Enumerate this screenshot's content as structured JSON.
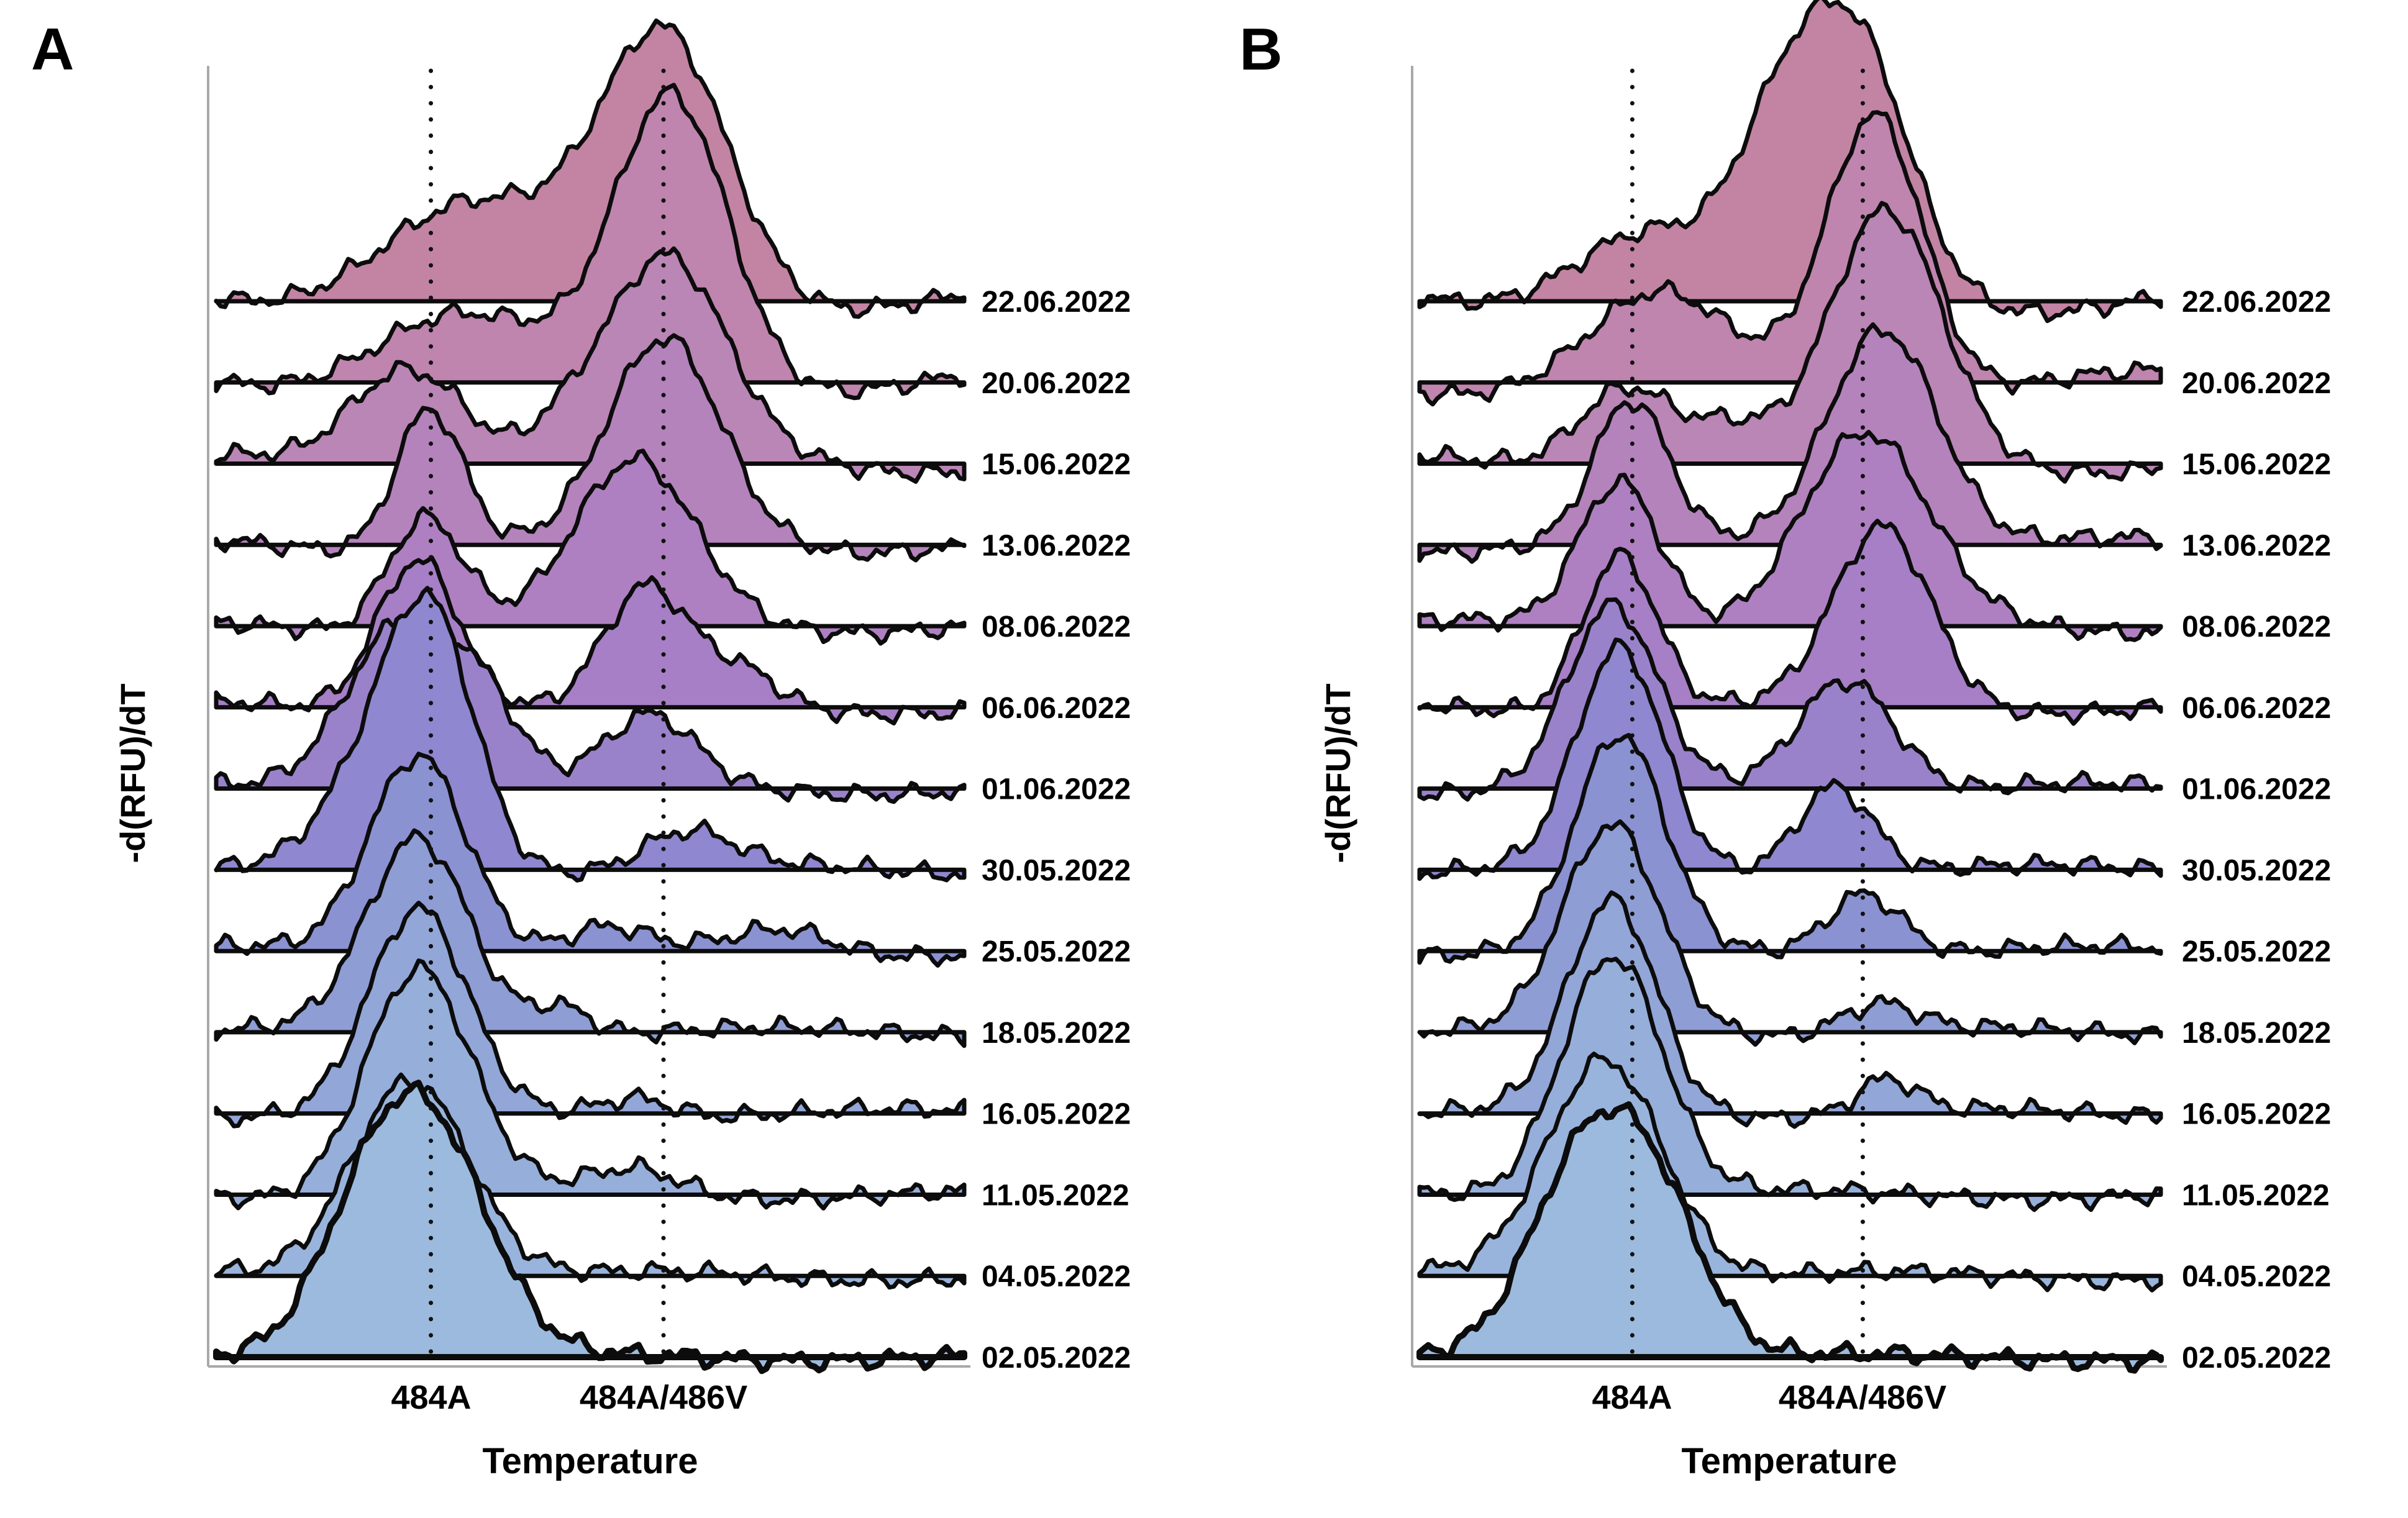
{
  "figure_background": "#ffffff",
  "chart_data": {
    "type": "area",
    "subtype": "ridgeline-melting-curves",
    "title": "",
    "x_axis": {
      "label": "Temperature",
      "numeric_scale_shown": false,
      "tick_labels": [
        "484A",
        "484A/486V"
      ],
      "tick_positions_rel": [
        0.287,
        0.598
      ]
    },
    "y_axis": {
      "label": "-d(RFU)/dT",
      "numeric_scale_shown": false
    },
    "categories_top_to_bottom": [
      "22.06.2022",
      "20.06.2022",
      "15.06.2022",
      "13.06.2022",
      "08.06.2022",
      "06.06.2022",
      "01.06.2022",
      "30.05.2022",
      "25.05.2022",
      "18.05.2022",
      "16.05.2022",
      "11.05.2022",
      "04.05.2022",
      "02.05.2022"
    ],
    "marker_lines": [
      "484A",
      "484A/486V"
    ],
    "panels": [
      {
        "label": "A",
        "series": [
          {
            "date": "22.06.2022",
            "wander": 20,
            "peaks": [
              {
                "t": 0.6,
                "h": 0.92,
                "w": 0.085
              },
              {
                "t": 0.33,
                "h": 0.34,
                "w": 0.12
              }
            ]
          },
          {
            "date": "20.06.2022",
            "wander": 20,
            "peaks": [
              {
                "t": 0.61,
                "h": 1.0,
                "w": 0.075
              },
              {
                "t": 0.31,
                "h": 0.24,
                "w": 0.11
              }
            ]
          },
          {
            "date": "15.06.2022",
            "wander": 15,
            "peaks": [
              {
                "t": 0.22,
                "h": 0.22,
                "w": 0.06
              },
              {
                "t": 0.3,
                "h": 0.22,
                "w": 0.06
              },
              {
                "t": 0.46,
                "h": 0.1,
                "w": 0.05
              },
              {
                "t": 0.6,
                "h": 0.7,
                "w": 0.08
              }
            ]
          },
          {
            "date": "13.06.2022",
            "wander": 13,
            "peaks": [
              {
                "t": 0.285,
                "h": 0.5,
                "w": 0.045
              },
              {
                "t": 0.6,
                "h": 0.7,
                "w": 0.075
              }
            ]
          },
          {
            "date": "08.06.2022",
            "wander": 11,
            "peaks": [
              {
                "t": 0.28,
                "h": 0.4,
                "w": 0.05
              },
              {
                "t": 0.56,
                "h": 0.56,
                "w": 0.08
              }
            ]
          },
          {
            "date": "06.06.2022",
            "wander": 11,
            "peaks": [
              {
                "t": 0.27,
                "h": 0.54,
                "w": 0.055
              },
              {
                "t": 0.575,
                "h": 0.4,
                "w": 0.055
              },
              {
                "t": 0.7,
                "h": 0.12,
                "w": 0.05
              }
            ]
          },
          {
            "date": "01.06.2022",
            "wander": 10,
            "peaks": [
              {
                "t": 0.25,
                "h": 0.6,
                "w": 0.075
              },
              {
                "t": 0.36,
                "h": 0.22,
                "w": 0.05
              },
              {
                "t": 0.58,
                "h": 0.24,
                "w": 0.06
              }
            ]
          },
          {
            "date": "30.05.2022",
            "wander": 9,
            "peaks": [
              {
                "t": 0.285,
                "h": 0.9,
                "w": 0.06
              },
              {
                "t": 0.19,
                "h": 0.22,
                "w": 0.06
              },
              {
                "t": 0.63,
                "h": 0.13,
                "w": 0.06
              }
            ]
          },
          {
            "date": "25.05.2022",
            "wander": 9,
            "peaks": [
              {
                "t": 0.27,
                "h": 0.7,
                "w": 0.065
              },
              {
                "t": 0.52,
                "h": 0.08,
                "w": 0.05
              },
              {
                "t": 0.76,
                "h": 0.07,
                "w": 0.06
              }
            ]
          },
          {
            "date": "18.05.2022",
            "wander": 8,
            "peaks": [
              {
                "t": 0.27,
                "h": 0.68,
                "w": 0.068
              },
              {
                "t": 0.46,
                "h": 0.1,
                "w": 0.04
              }
            ]
          },
          {
            "date": "16.05.2022",
            "wander": 8,
            "peaks": [
              {
                "t": 0.27,
                "h": 0.7,
                "w": 0.065
              },
              {
                "t": 0.56,
                "h": 0.07,
                "w": 0.05
              }
            ]
          },
          {
            "date": "11.05.2022",
            "wander": 8,
            "peaks": [
              {
                "t": 0.27,
                "h": 0.79,
                "w": 0.07
              },
              {
                "t": 0.56,
                "h": 0.09,
                "w": 0.06
              }
            ]
          },
          {
            "date": "04.05.2022",
            "wander": 8,
            "peaks": [
              {
                "t": 0.26,
                "h": 0.7,
                "w": 0.078
              }
            ]
          },
          {
            "date": "02.05.2022",
            "wander": 6,
            "peaks": [
              {
                "t": 0.215,
                "h": 0.56,
                "w": 0.075
              },
              {
                "t": 0.305,
                "h": 0.56,
                "w": 0.075
              }
            ]
          }
        ]
      },
      {
        "label": "B",
        "series": [
          {
            "date": "22.06.2022",
            "wander": 20,
            "peaks": [
              {
                "t": 0.585,
                "h": 0.9,
                "w": 0.075
              },
              {
                "t": 0.48,
                "h": 0.38,
                "w": 0.06
              },
              {
                "t": 0.3,
                "h": 0.26,
                "w": 0.1
              }
            ]
          },
          {
            "date": "20.06.2022",
            "wander": 20,
            "peaks": [
              {
                "t": 0.615,
                "h": 0.97,
                "w": 0.065
              },
              {
                "t": 0.32,
                "h": 0.28,
                "w": 0.09
              }
            ]
          },
          {
            "date": "15.06.2022",
            "wander": 15,
            "peaks": [
              {
                "t": 0.63,
                "h": 0.86,
                "w": 0.075
              },
              {
                "t": 0.28,
                "h": 0.3,
                "w": 0.065
              },
              {
                "t": 0.42,
                "h": 0.12,
                "w": 0.05
              }
            ]
          },
          {
            "date": "13.06.2022",
            "wander": 13,
            "peaks": [
              {
                "t": 0.285,
                "h": 0.48,
                "w": 0.05
              },
              {
                "t": 0.625,
                "h": 0.78,
                "w": 0.075
              }
            ]
          },
          {
            "date": "08.06.2022",
            "wander": 11,
            "peaks": [
              {
                "t": 0.27,
                "h": 0.52,
                "w": 0.055
              },
              {
                "t": 0.6,
                "h": 0.66,
                "w": 0.085
              }
            ]
          },
          {
            "date": "06.06.2022",
            "wander": 11,
            "peaks": [
              {
                "t": 0.27,
                "h": 0.55,
                "w": 0.05
              },
              {
                "t": 0.625,
                "h": 0.62,
                "w": 0.065
              }
            ]
          },
          {
            "date": "01.06.2022",
            "wander": 10,
            "peaks": [
              {
                "t": 0.26,
                "h": 0.62,
                "w": 0.06
              },
              {
                "t": 0.575,
                "h": 0.4,
                "w": 0.065
              }
            ]
          },
          {
            "date": "30.05.2022",
            "wander": 9,
            "peaks": [
              {
                "t": 0.27,
                "h": 0.76,
                "w": 0.058
              },
              {
                "t": 0.56,
                "h": 0.31,
                "w": 0.05
              }
            ]
          },
          {
            "date": "25.05.2022",
            "wander": 9,
            "peaks": [
              {
                "t": 0.27,
                "h": 0.74,
                "w": 0.06
              },
              {
                "t": 0.6,
                "h": 0.22,
                "w": 0.05
              }
            ]
          },
          {
            "date": "18.05.2022",
            "wander": 8,
            "peaks": [
              {
                "t": 0.26,
                "h": 0.72,
                "w": 0.065
              },
              {
                "t": 0.62,
                "h": 0.1,
                "w": 0.05
              }
            ]
          },
          {
            "date": "16.05.2022",
            "wander": 8,
            "peaks": [
              {
                "t": 0.26,
                "h": 0.74,
                "w": 0.06
              },
              {
                "t": 0.63,
                "h": 0.12,
                "w": 0.04
              }
            ]
          },
          {
            "date": "11.05.2022",
            "wander": 8,
            "peaks": [
              {
                "t": 0.26,
                "h": 0.85,
                "w": 0.068
              }
            ]
          },
          {
            "date": "04.05.2022",
            "wander": 8,
            "peaks": [
              {
                "t": 0.25,
                "h": 0.77,
                "w": 0.078
              }
            ]
          },
          {
            "date": "02.05.2022",
            "wander": 6,
            "peaks": [
              {
                "t": 0.21,
                "h": 0.57,
                "w": 0.07
              },
              {
                "t": 0.31,
                "h": 0.57,
                "w": 0.07
              }
            ]
          }
        ]
      }
    ],
    "style": {
      "fill_colors_top_to_bottom": [
        "#c384a4",
        "#bf85ae",
        "#ba86b6",
        "#b483bc",
        "#ae80c1",
        "#a67fc6",
        "#9a82cb",
        "#8f87cf",
        "#8b92d2",
        "#8f9dd5",
        "#93a6d8",
        "#96aeda",
        "#99b4dc",
        "#9cbade"
      ],
      "stroke_color": "#0c0c0c",
      "axis_color": "#a9a9a9",
      "marker_line_color": "#111111",
      "text_color": "#000000"
    }
  }
}
